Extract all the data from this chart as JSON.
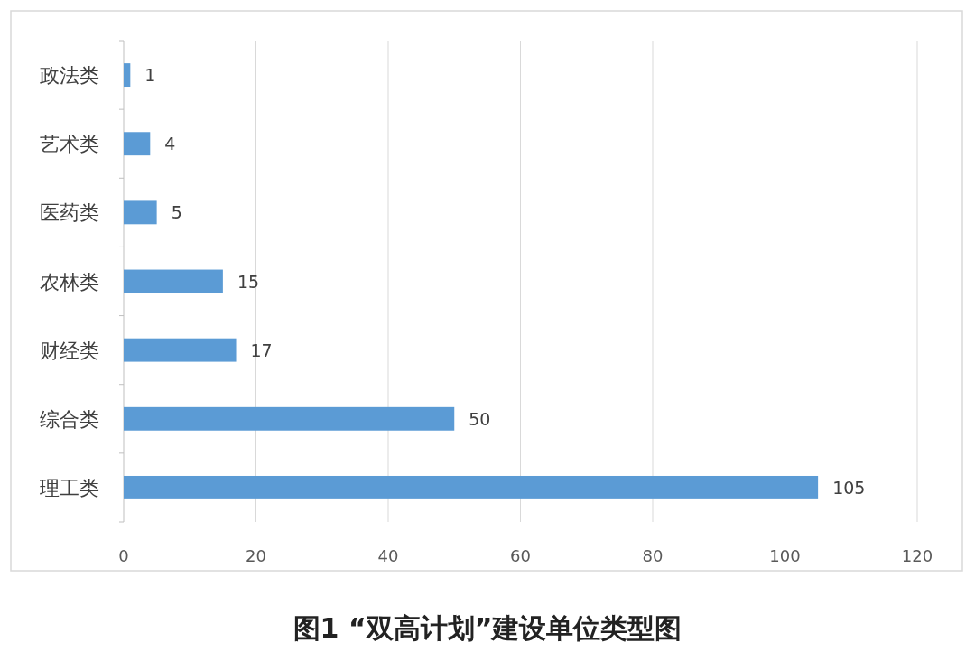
{
  "chart_data": {
    "type": "bar",
    "orientation": "horizontal",
    "title": "图1 “双高计划”建设单位类型图",
    "categories": [
      "政法类",
      "艺术类",
      "医药类",
      "农林类",
      "财经类",
      "综合类",
      "理工类"
    ],
    "values": [
      1,
      4,
      5,
      15,
      17,
      50,
      105
    ],
    "color": "#5b9bd5",
    "xlim": [
      0,
      120
    ],
    "xticks": [
      0,
      20,
      40,
      60,
      80,
      100,
      120
    ],
    "grid": "x",
    "data_labels": true
  }
}
